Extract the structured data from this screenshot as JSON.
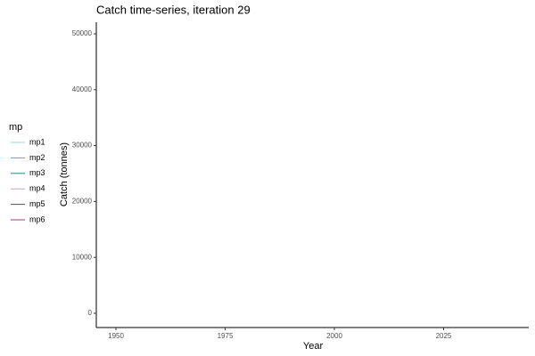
{
  "chart_data": {
    "type": "line",
    "title": "Catch time-series, iteration 29",
    "x_label": "Year",
    "y_label": "Catch (tonnes)",
    "legend_title": "mp",
    "legend_position": "left",
    "x": [],
    "series": [
      {
        "name": "mp1",
        "color": "#a6d1e6",
        "values": []
      },
      {
        "name": "mp2",
        "color": "#3fb3c9",
        "values": []
      },
      {
        "name": "mp3",
        "color": "#1a8a8f",
        "values": []
      },
      {
        "name": "mp4",
        "color": "#c4a6b8",
        "values": []
      },
      {
        "name": "mp5",
        "color": "#5c4a5c",
        "values": []
      },
      {
        "name": "mp6",
        "color": "#b0307f",
        "values": []
      }
    ],
    "xlim": [
      1945.5,
      2044.5
    ],
    "xticks": [
      1950,
      1975,
      2000,
      2025
    ],
    "ylim": [
      -2550,
      52070
    ],
    "yticks": [
      0,
      10000,
      20000,
      30000,
      40000,
      50000
    ],
    "grid": false
  }
}
